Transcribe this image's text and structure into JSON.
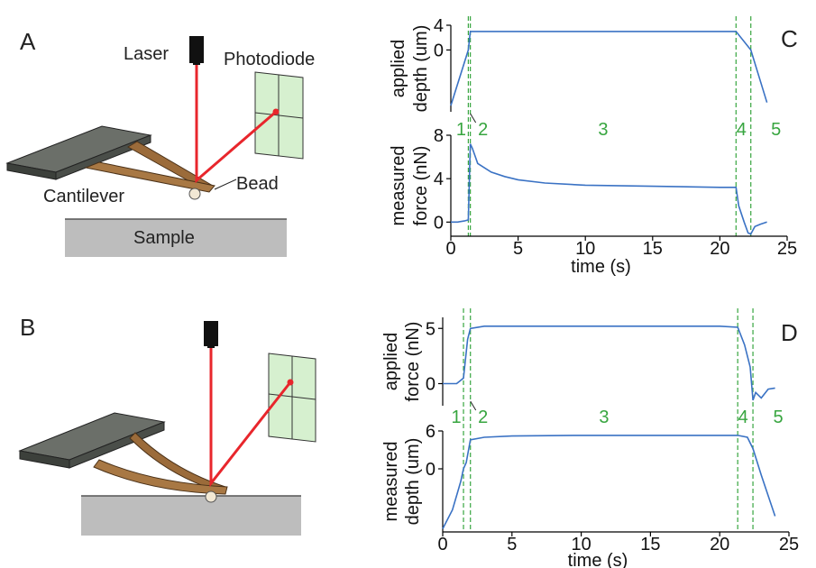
{
  "panels": {
    "a": {
      "letter": "A",
      "labels": {
        "laser": "Laser",
        "photodiode": "Photodiode",
        "cantilever": "Cantilever",
        "bead": "Bead",
        "sample": "Sample"
      }
    },
    "b": {
      "letter": "B"
    },
    "c": {
      "letter": "C"
    },
    "d": {
      "letter": "D"
    }
  },
  "colors": {
    "laser_beam": "#e8262c",
    "data_line": "#3a72c4",
    "phase_marker": "#37a53f",
    "photodiode": "#d6f0cf",
    "base_plate": "#5a5f59",
    "cantilever_arm": "#9b6b3a",
    "sample": "#bdbdbd"
  },
  "chart_data": [
    {
      "id": "C",
      "type": "line",
      "x_ticks": [
        "0",
        "5",
        "10",
        "15",
        "20",
        "25"
      ],
      "xlabel": "time (s)",
      "xlim": [
        0,
        25
      ],
      "phase_labels": [
        "1",
        "2",
        "3",
        "4",
        "5"
      ],
      "phase_boundaries_s": [
        1.3,
        1.45,
        21.2,
        22.3
      ],
      "subplots": [
        {
          "ylabel_lines": [
            "applied",
            "depth (um)"
          ],
          "y_ticks": [
            "4",
            "0"
          ],
          "y_tick_values": [
            4,
            0
          ],
          "ylim": [
            -10,
            4
          ],
          "series": [
            {
              "x": [
                0,
                1.3,
                1.45,
                21.2,
                22.3,
                23.5
              ],
              "y": [
                -9,
                0,
                3,
                3,
                0,
                -8.5
              ]
            }
          ]
        },
        {
          "ylabel_lines": [
            "measured",
            "force (nN)"
          ],
          "y_ticks": [
            "8",
            "4",
            "0"
          ],
          "y_tick_values": [
            8,
            4,
            0
          ],
          "ylim": [
            -1.3,
            8
          ],
          "series": [
            {
              "x": [
                0,
                0.5,
                1.0,
                1.3,
                1.45,
                1.6,
                2,
                3,
                4,
                5,
                7,
                10,
                15,
                20,
                21.2,
                21.4,
                21.8,
                22.1,
                22.3,
                22.6,
                23,
                23.5
              ],
              "y": [
                0,
                0,
                0.1,
                0.2,
                7.2,
                6.8,
                5.4,
                4.6,
                4.2,
                3.9,
                3.6,
                3.4,
                3.3,
                3.2,
                3.2,
                1.5,
                0,
                -1.0,
                -1.1,
                -0.4,
                -0.2,
                0
              ]
            }
          ]
        }
      ]
    },
    {
      "id": "D",
      "type": "line",
      "x_ticks": [
        "0",
        "5",
        "10",
        "15",
        "20",
        "25"
      ],
      "xlabel": "time (s)",
      "xlim": [
        0,
        25
      ],
      "phase_labels": [
        "1",
        "2",
        "3",
        "4",
        "5"
      ],
      "phase_boundaries_s": [
        1.5,
        2.0,
        21.3,
        22.4
      ],
      "subplots": [
        {
          "ylabel_lines": [
            "applied",
            "force (nN)"
          ],
          "y_ticks": [
            "5",
            "0"
          ],
          "y_tick_values": [
            5,
            0
          ],
          "ylim": [
            -2,
            6
          ],
          "series": [
            {
              "x": [
                0,
                1.0,
                1.5,
                1.8,
                2.0,
                3,
                10,
                20,
                21.3,
                21.8,
                22.2,
                22.4,
                22.6,
                23,
                23.5,
                24
              ],
              "y": [
                0,
                0,
                0.5,
                4.0,
                5.0,
                5.2,
                5.2,
                5.2,
                5.1,
                3.5,
                1.5,
                -1.5,
                -0.8,
                -1.3,
                -0.5,
                -0.4
              ]
            }
          ]
        },
        {
          "ylabel_lines": [
            "measured",
            "depth (um)"
          ],
          "y_ticks": [
            "6",
            "0"
          ],
          "y_tick_values": [
            6,
            0
          ],
          "ylim": [
            -10,
            6
          ],
          "series": [
            {
              "x": [
                0,
                0.7,
                1.3,
                1.5,
                1.7,
                2.0,
                3,
                5,
                10,
                15,
                20,
                21.3,
                22.0,
                22.4,
                23,
                24
              ],
              "y": [
                -9.5,
                -6.5,
                -2,
                0,
                1.0,
                4.6,
                5.0,
                5.2,
                5.3,
                5.3,
                5.3,
                5.3,
                5.0,
                3.2,
                -1.0,
                -7.5
              ]
            }
          ]
        }
      ]
    }
  ]
}
